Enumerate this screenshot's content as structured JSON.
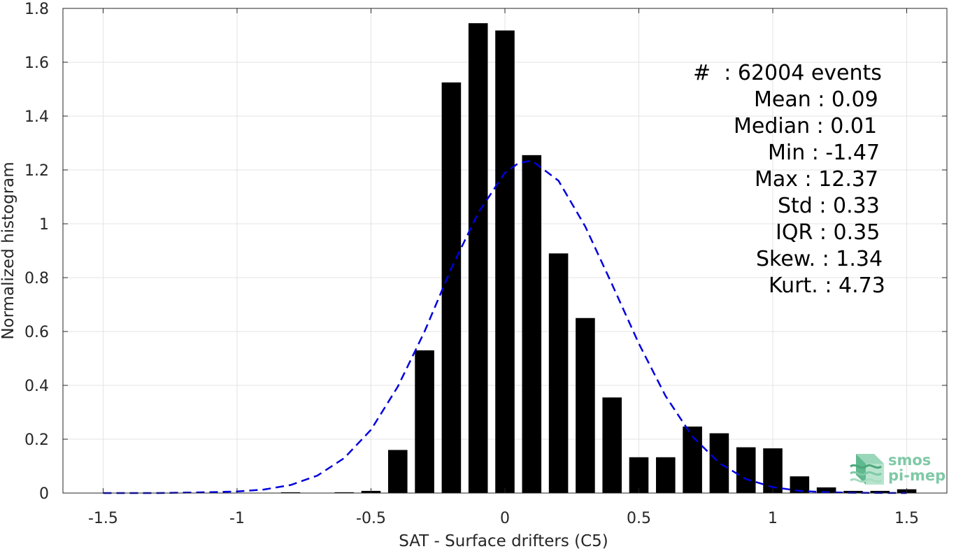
{
  "chart_data": {
    "type": "bar",
    "title": "",
    "xlabel": "SAT - Surface drifters (C5)",
    "ylabel": "Normalized histogram",
    "xlim": [
      -1.65,
      1.65
    ],
    "ylim": [
      0,
      1.8
    ],
    "xticks": [
      -1.5,
      -1,
      -0.5,
      0,
      0.5,
      1,
      1.5
    ],
    "xtick_labels": [
      "-1.5",
      "-1",
      "-0.5",
      "0",
      "0.5",
      "1",
      "1.5"
    ],
    "yticks": [
      0,
      0.2,
      0.4,
      0.6,
      0.8,
      1,
      1.2,
      1.4,
      1.6,
      1.8
    ],
    "ytick_labels": [
      "0",
      "0.2",
      "0.4",
      "0.6",
      "0.8",
      "1",
      "1.2",
      "1.4",
      "1.6",
      "1.8"
    ],
    "grid": true,
    "bar_color": "#000000",
    "bin_width": 0.1,
    "bars": [
      {
        "x": -0.8,
        "y": 0.003
      },
      {
        "x": -0.6,
        "y": 0.003
      },
      {
        "x": -0.5,
        "y": 0.008
      },
      {
        "x": -0.4,
        "y": 0.16
      },
      {
        "x": -0.3,
        "y": 0.53
      },
      {
        "x": -0.2,
        "y": 1.525
      },
      {
        "x": -0.1,
        "y": 1.745
      },
      {
        "x": 0.0,
        "y": 1.718
      },
      {
        "x": 0.1,
        "y": 1.255
      },
      {
        "x": 0.2,
        "y": 0.89
      },
      {
        "x": 0.3,
        "y": 0.65
      },
      {
        "x": 0.4,
        "y": 0.355
      },
      {
        "x": 0.5,
        "y": 0.133
      },
      {
        "x": 0.6,
        "y": 0.133
      },
      {
        "x": 0.7,
        "y": 0.247
      },
      {
        "x": 0.8,
        "y": 0.222
      },
      {
        "x": 0.9,
        "y": 0.17
      },
      {
        "x": 1.0,
        "y": 0.166
      },
      {
        "x": 1.1,
        "y": 0.062
      },
      {
        "x": 1.2,
        "y": 0.021
      },
      {
        "x": 1.3,
        "y": 0.008
      },
      {
        "x": 1.4,
        "y": 0.008
      },
      {
        "x": 1.5,
        "y": 0.014
      }
    ],
    "fit_curve": {
      "style": "dashed",
      "color": "#0000dd",
      "points": [
        [
          -1.5,
          0.0
        ],
        [
          -1.3,
          0.0
        ],
        [
          -1.1,
          0.003
        ],
        [
          -1.0,
          0.006
        ],
        [
          -0.9,
          0.013
        ],
        [
          -0.8,
          0.03
        ],
        [
          -0.7,
          0.065
        ],
        [
          -0.6,
          0.13
        ],
        [
          -0.5,
          0.235
        ],
        [
          -0.4,
          0.395
        ],
        [
          -0.3,
          0.6
        ],
        [
          -0.2,
          0.835
        ],
        [
          -0.1,
          1.04
        ],
        [
          0.0,
          1.19
        ],
        [
          0.05,
          1.225
        ],
        [
          0.1,
          1.235
        ],
        [
          0.2,
          1.16
        ],
        [
          0.3,
          0.99
        ],
        [
          0.4,
          0.775
        ],
        [
          0.5,
          0.555
        ],
        [
          0.6,
          0.36
        ],
        [
          0.7,
          0.21
        ],
        [
          0.8,
          0.112
        ],
        [
          0.9,
          0.052
        ],
        [
          1.0,
          0.022
        ],
        [
          1.1,
          0.008
        ],
        [
          1.2,
          0.003
        ],
        [
          1.3,
          0.001
        ],
        [
          1.5,
          0.0
        ]
      ]
    },
    "stats": {
      "count": "#  : 62004 events",
      "mean": "Mean : 0.09",
      "median": "Median : 0.01",
      "min": "Min : -1.47",
      "max": "Max : 12.37",
      "std": "Std : 0.33",
      "iqr": "IQR : 0.35",
      "skew": "Skew. : 1.34",
      "kurt": "Kurt. : 4.73"
    }
  },
  "logo": {
    "line1": "smos",
    "line2": "pi-mep",
    "color": "#7fc9a6"
  }
}
